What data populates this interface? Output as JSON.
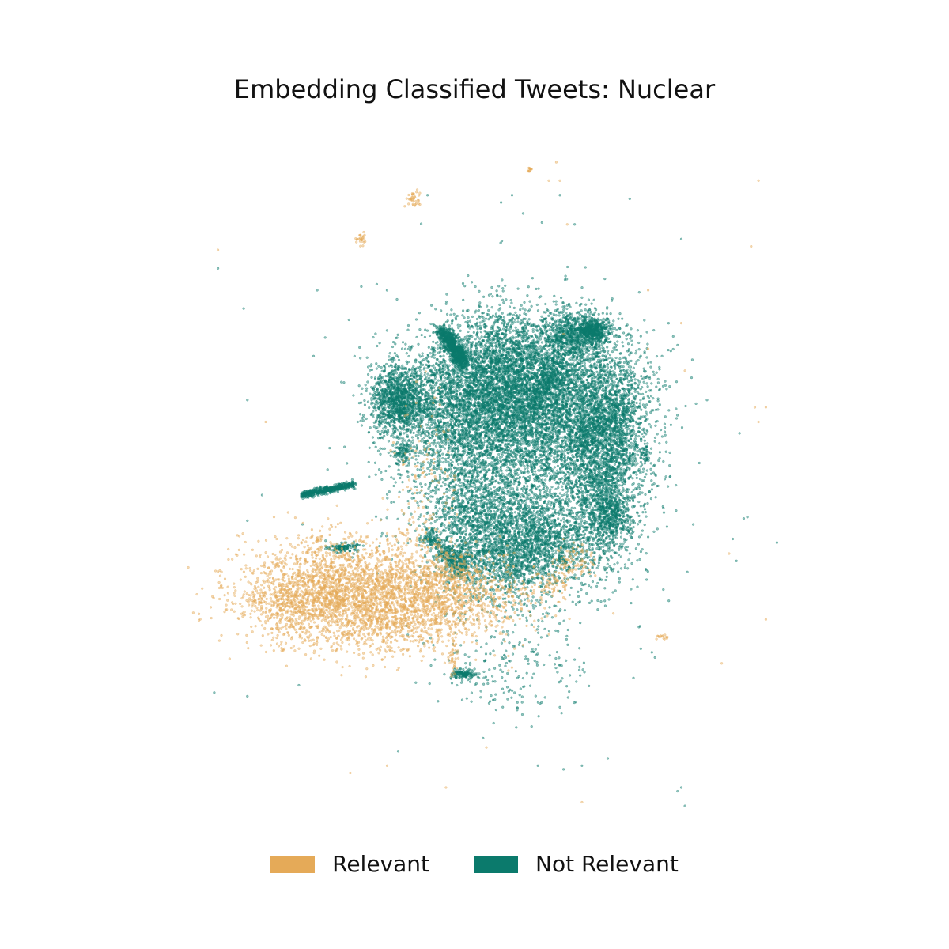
{
  "chart_data": {
    "type": "scatter",
    "title": "Embedding Classified Tweets: Nuclear",
    "xlabel": "",
    "ylabel": "",
    "axes_visible": false,
    "grid": false,
    "legend_position": "bottom-center",
    "xlim": [
      0,
      100
    ],
    "ylim": [
      0,
      100
    ],
    "series": [
      {
        "name": "Relevant",
        "color": "#e5aa58",
        "clusters": [
          {
            "x": 33,
            "y": 35,
            "sx": 8,
            "sy": 3.5,
            "n": 2400
          },
          {
            "x": 26,
            "y": 33,
            "sx": 4,
            "sy": 3,
            "n": 500
          },
          {
            "x": 45,
            "y": 34,
            "sx": 6,
            "sy": 2.5,
            "n": 700
          },
          {
            "x": 37,
            "y": 30,
            "sx": 5,
            "sy": 2,
            "n": 300
          },
          {
            "x": 20,
            "y": 33,
            "sx": 3,
            "sy": 1,
            "n": 80
          },
          {
            "x": 45,
            "y": 37.5,
            "sx": 1.5,
            "sy": 1,
            "n": 70
          },
          {
            "x": 62,
            "y": 39,
            "sx": 1.3,
            "sy": 1.3,
            "n": 80
          },
          {
            "x": 59,
            "y": 36,
            "sx": 1.2,
            "sy": 0.8,
            "n": 50
          },
          {
            "x": 42,
            "y": 50,
            "sx": 2,
            "sy": 6,
            "n": 120
          },
          {
            "x": 45.5,
            "y": 26,
            "sx": 0.5,
            "sy": 1.5,
            "n": 40
          },
          {
            "x": 40,
            "y": 88.5,
            "sx": 0.5,
            "sy": 0.6,
            "n": 35
          },
          {
            "x": 33,
            "y": 83,
            "sx": 0.4,
            "sy": 0.4,
            "n": 25
          },
          {
            "x": 56,
            "y": 92.5,
            "sx": 0.2,
            "sy": 0.2,
            "n": 12
          },
          {
            "x": 27,
            "y": 42,
            "sx": 0.4,
            "sy": 0.3,
            "n": 15
          },
          {
            "x": 74,
            "y": 28.5,
            "sx": 0.4,
            "sy": 0.2,
            "n": 14
          },
          {
            "x": 29,
            "y": 33.5,
            "sx": 1.5,
            "sy": 0.6,
            "n": 60
          }
        ],
        "scatter_points": [
          [
            13.5,
            81.5
          ],
          [
            87,
            91
          ],
          [
            86,
            82
          ],
          [
            86.5,
            60
          ],
          [
            87,
            58
          ],
          [
            82,
            25
          ],
          [
            88,
            31
          ],
          [
            20,
            58
          ],
          [
            21.5,
            42
          ],
          [
            25,
            33
          ],
          [
            83,
            40
          ],
          [
            60,
            91
          ],
          [
            59.5,
            93.5
          ],
          [
            61,
            85
          ],
          [
            58.5,
            91
          ],
          [
            76.5,
            71.5
          ],
          [
            72,
            76
          ],
          [
            63,
            6
          ],
          [
            50,
            30
          ],
          [
            52.5,
            28
          ],
          [
            55,
            27.5
          ],
          [
            53,
            24
          ],
          [
            44.5,
            8
          ],
          [
            50,
            13.5
          ],
          [
            53,
            26
          ],
          [
            72,
            68
          ],
          [
            77,
            65
          ],
          [
            60.5,
            70
          ],
          [
            56.5,
            30
          ],
          [
            31.5,
            10
          ],
          [
            36.5,
            11
          ],
          [
            88,
            60
          ]
        ]
      },
      {
        "name": "Not Relevant",
        "color": "#0b7a6c",
        "clusters": [
          {
            "x": 55,
            "y": 53,
            "sx": 7,
            "sy": 9,
            "n": 4000
          },
          {
            "x": 52,
            "y": 62,
            "sx": 6,
            "sy": 4,
            "n": 2500
          },
          {
            "x": 45,
            "y": 59,
            "sx": 5,
            "sy": 5,
            "n": 1500
          },
          {
            "x": 63,
            "y": 61,
            "sx": 5,
            "sy": 5,
            "n": 1800
          },
          {
            "x": 66,
            "y": 50,
            "sx": 2.5,
            "sy": 6,
            "n": 1500
          },
          {
            "x": 53,
            "y": 40,
            "sx": 4,
            "sy": 3,
            "n": 1300
          },
          {
            "x": 38,
            "y": 61,
            "sx": 1.8,
            "sy": 2.2,
            "n": 1000
          },
          {
            "x": 62.5,
            "y": 70,
            "sx": 2.2,
            "sy": 1.5,
            "n": 700
          },
          {
            "x": 53,
            "y": 68,
            "sx": 4,
            "sy": 3,
            "n": 800
          },
          {
            "x": 59,
            "y": 42,
            "sx": 3,
            "sy": 2,
            "n": 400
          },
          {
            "x": 67,
            "y": 45,
            "sx": 1.2,
            "sy": 1.5,
            "n": 300
          },
          {
            "x": 46,
            "y": 39,
            "sx": 1.2,
            "sy": 1.2,
            "n": 200
          },
          {
            "x": 47,
            "y": 23.5,
            "sx": 0.8,
            "sy": 0.3,
            "n": 130
          },
          {
            "x": 30.5,
            "y": 40.8,
            "sx": 1.0,
            "sy": 0.3,
            "n": 130
          },
          {
            "x": 64.5,
            "y": 70.5,
            "sx": 1.0,
            "sy": 0.7,
            "n": 300
          },
          {
            "x": 71.5,
            "y": 53.5,
            "sx": 0.3,
            "sy": 0.6,
            "n": 40
          },
          {
            "x": 38.5,
            "y": 54,
            "sx": 0.5,
            "sy": 0.7,
            "n": 80
          },
          {
            "x": 42,
            "y": 42,
            "sx": 0.5,
            "sy": 0.3,
            "n": 40
          },
          {
            "x": 54,
            "y": 25,
            "sx": 5,
            "sy": 4,
            "n": 200
          },
          {
            "x": 68,
            "y": 58,
            "sx": 2,
            "sy": 4,
            "n": 400
          },
          {
            "x": 48,
            "y": 46,
            "sx": 3,
            "sy": 3,
            "n": 600
          }
        ],
        "lines": [
          {
            "from": [
              44,
              70.5
            ],
            "to": [
              47,
              66
            ],
            "sx": 0.5,
            "n": 900
          },
          {
            "from": [
              25,
              48
            ],
            "to": [
              32,
              49.5
            ],
            "sx": 0.25,
            "n": 500
          },
          {
            "from": [
              42,
              43
            ],
            "to": [
              46,
              38
            ],
            "sx": 0.5,
            "n": 150
          },
          {
            "from": [
              62,
              55
            ],
            "to": [
              68,
              60
            ],
            "sx": 1.0,
            "n": 200
          },
          {
            "from": [
              56,
              60
            ],
            "to": [
              60,
              66
            ],
            "sx": 1.0,
            "n": 300
          }
        ],
        "scatter_points": [
          [
            13.5,
            79
          ],
          [
            17,
            73.5
          ],
          [
            17.5,
            61
          ],
          [
            19.5,
            48
          ],
          [
            17.5,
            44.5
          ],
          [
            17.5,
            20.5
          ],
          [
            13,
            21
          ],
          [
            25,
            44
          ],
          [
            24.5,
            22
          ],
          [
            27,
            76
          ],
          [
            36.5,
            70.5
          ],
          [
            33,
            76.5
          ],
          [
            38,
            13
          ],
          [
            43,
            25.5
          ],
          [
            49,
            23
          ],
          [
            55,
            86.5
          ],
          [
            62,
            85
          ],
          [
            63,
            75
          ],
          [
            76.5,
            83
          ],
          [
            62,
            25.5
          ],
          [
            66.5,
            12
          ],
          [
            68.5,
            41
          ],
          [
            69.5,
            40
          ],
          [
            60,
            19
          ],
          [
            57,
            11
          ],
          [
            60.5,
            10.5
          ],
          [
            63,
            11
          ],
          [
            72.5,
            26.5
          ],
          [
            76.5,
            8
          ],
          [
            77,
            5.5
          ],
          [
            84,
            39
          ],
          [
            83.5,
            42
          ],
          [
            89.5,
            41.5
          ],
          [
            85.5,
            45
          ],
          [
            78.5,
            60.5
          ],
          [
            80,
            61
          ],
          [
            76,
            68.5
          ],
          [
            74.5,
            62.5
          ],
          [
            71,
            46.5
          ],
          [
            70,
            60.5
          ],
          [
            78,
            66.5
          ],
          [
            32.5,
            58
          ],
          [
            34,
            52.5
          ],
          [
            26.5,
            67
          ],
          [
            36.5,
            76
          ],
          [
            52,
            88
          ],
          [
            53.5,
            89
          ],
          [
            60,
            89
          ],
          [
            69.5,
            88.5
          ],
          [
            42,
            89
          ],
          [
            47.5,
            78
          ],
          [
            54.5,
            65.5
          ],
          [
            76,
            7.5
          ],
          [
            70,
            23
          ],
          [
            71,
            27
          ]
        ]
      }
    ]
  },
  "legend": {
    "items": [
      {
        "label": "Relevant",
        "color": "#e5aa58"
      },
      {
        "label": "Not Relevant",
        "color": "#0b7a6c"
      }
    ]
  }
}
